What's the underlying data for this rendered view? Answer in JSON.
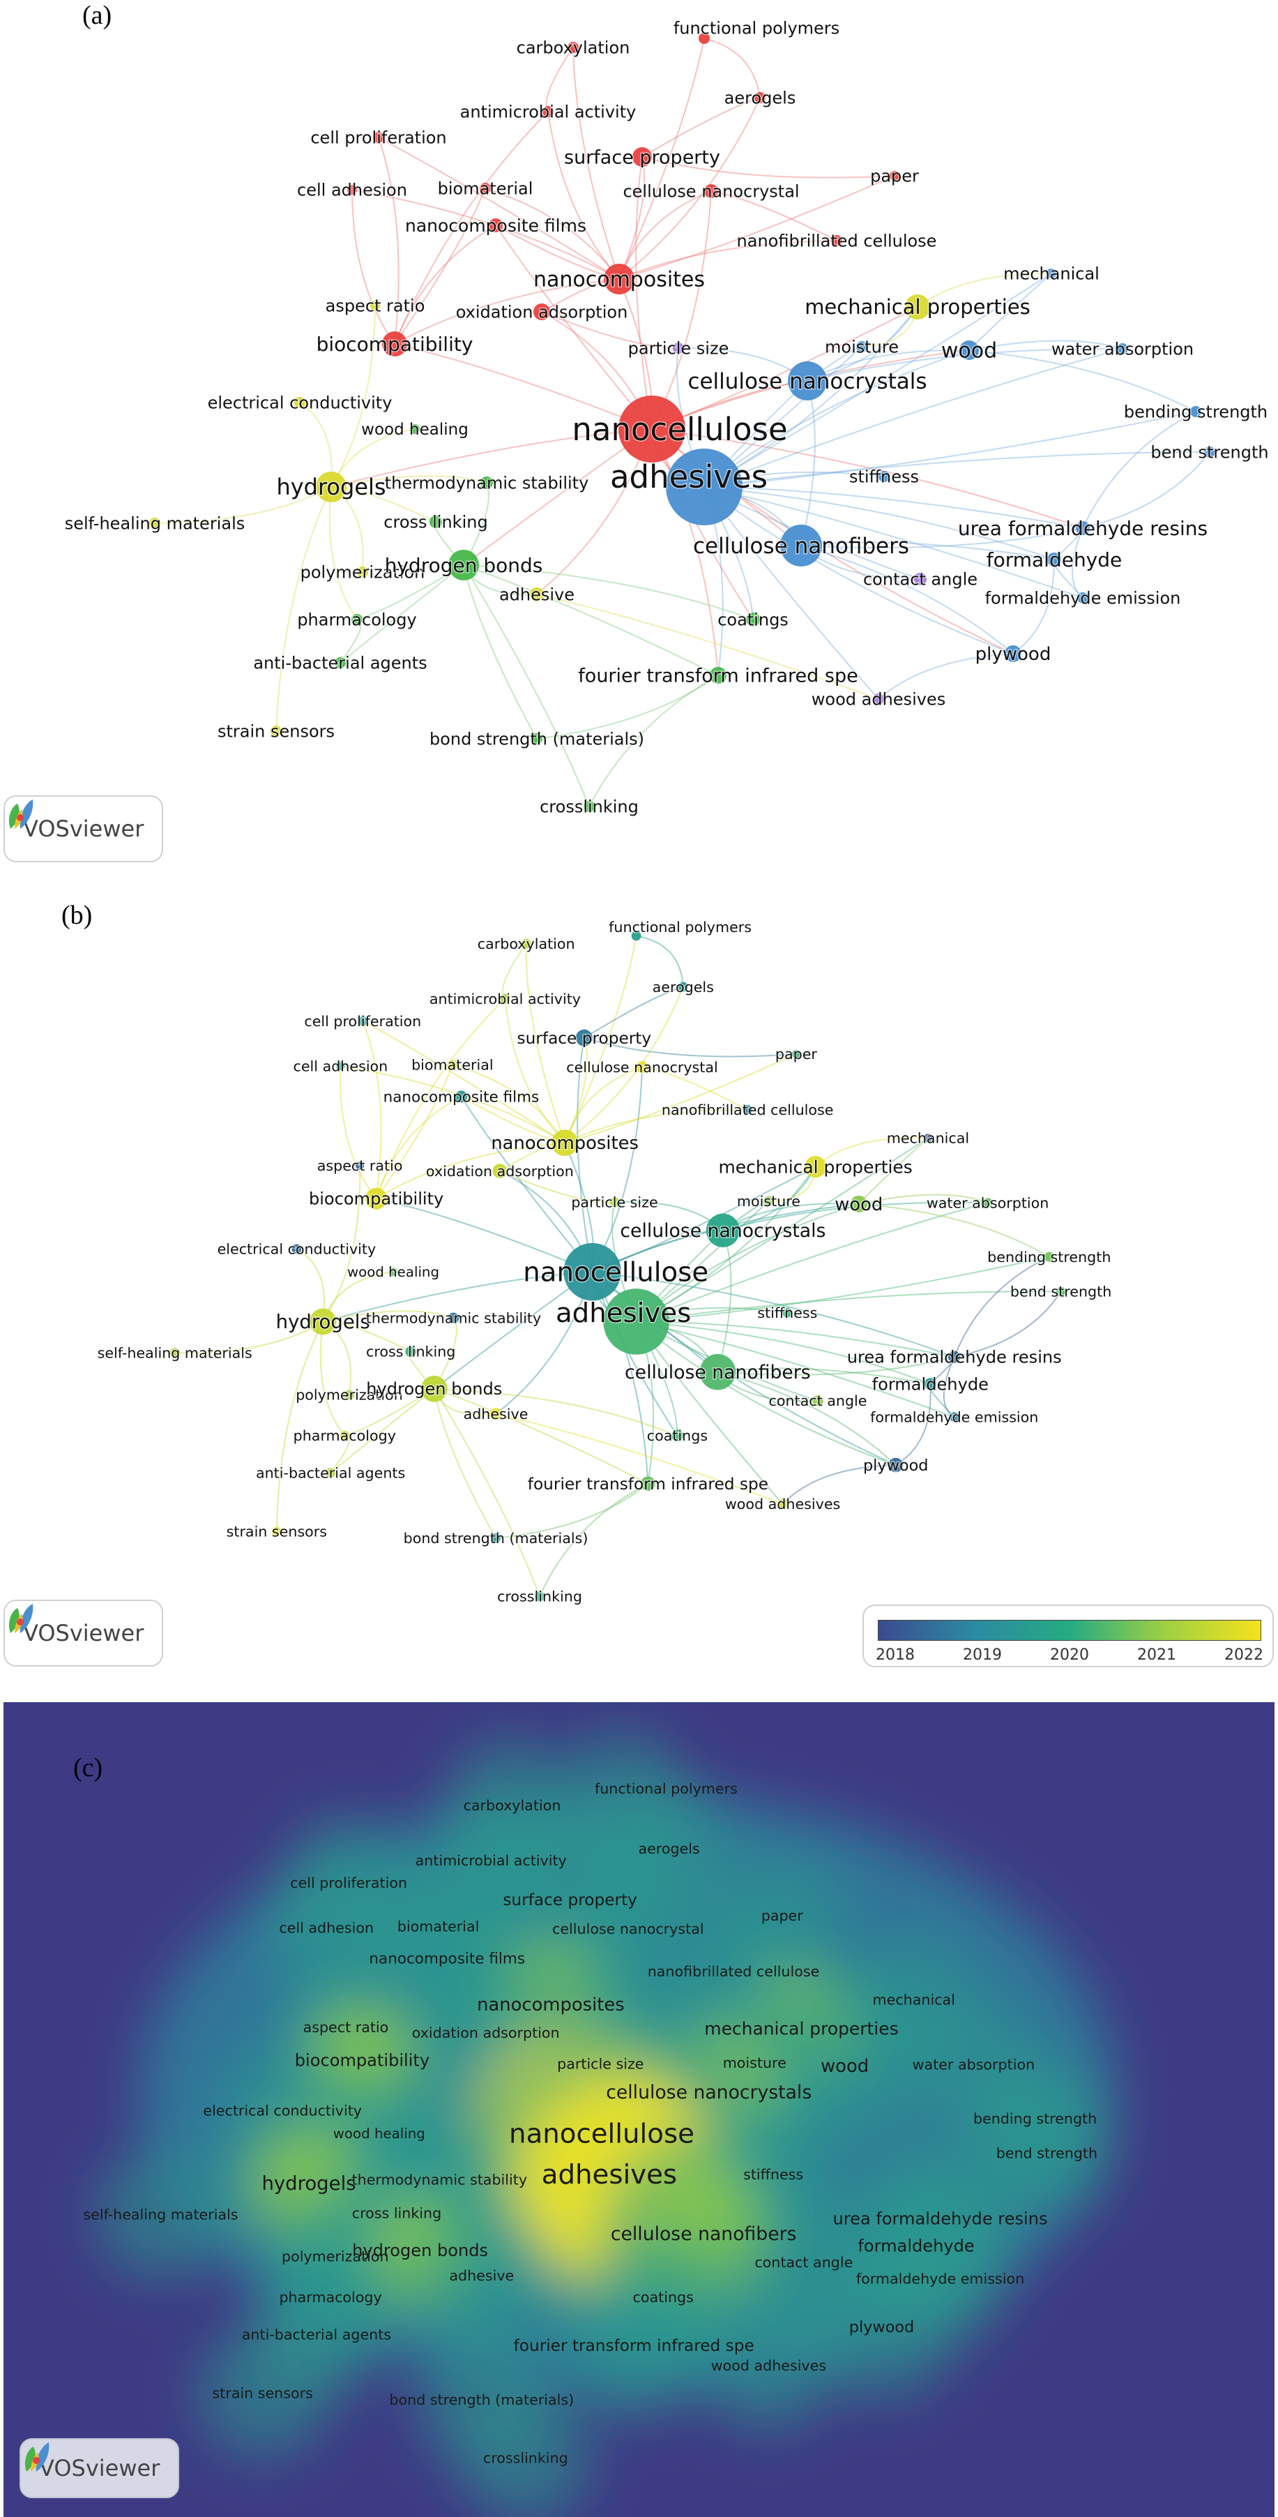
{
  "panels": {
    "a": {
      "letter": "(a)"
    },
    "b": {
      "letter": "(b)"
    },
    "c": {
      "letter": "(c)"
    }
  },
  "logo_text": "VOSviewer",
  "colorbar": {
    "ticks": [
      "2018",
      "2019",
      "2020",
      "2021",
      "2022"
    ],
    "range": [
      2017.8,
      2022.2
    ]
  },
  "colors": {
    "red": "#e8423f",
    "blue": "#4a8fd1",
    "green": "#47b84a",
    "yellow": "#d9d92e",
    "purple": "#a379e0",
    "density_bg": "#3e3b84"
  },
  "terms": [
    {
      "label": "functional polymers",
      "cluster": "red",
      "year": 2019.7
    },
    {
      "label": "carboxylation",
      "cluster": "red",
      "year": 2021.5
    },
    {
      "label": "aerogels",
      "cluster": "red",
      "year": 2019.3
    },
    {
      "label": "antimicrobial activity",
      "cluster": "red",
      "year": 2021.2
    },
    {
      "label": "cell proliferation",
      "cluster": "red",
      "year": 2019.5
    },
    {
      "label": "biomaterial",
      "cluster": "red",
      "year": 2021.8
    },
    {
      "label": "surface property",
      "cluster": "red",
      "year": 2018.6
    },
    {
      "label": "paper",
      "cluster": "red",
      "year": 2020.2
    },
    {
      "label": "cell adhesion",
      "cluster": "red",
      "year": 2019.6
    },
    {
      "label": "cellulose nanocrystal",
      "cluster": "red",
      "year": 2022.0
    },
    {
      "label": "nanocomposite films",
      "cluster": "red",
      "year": 2019.4
    },
    {
      "label": "nanofibrillated cellulose",
      "cluster": "red",
      "year": 2018.9
    },
    {
      "label": "nanocomposites",
      "cluster": "red",
      "year": 2021.8
    },
    {
      "label": "mechanical",
      "cluster": "blue",
      "year": 2018.2
    },
    {
      "label": "oxidation adsorption",
      "cluster": "red",
      "year": 2021.6
    },
    {
      "label": "aspect ratio",
      "cluster": "yellow",
      "year": 2018.4
    },
    {
      "label": "mechanical properties",
      "cluster": "yellow",
      "year": 2021.9
    },
    {
      "label": "biocompatibility",
      "cluster": "red",
      "year": 2021.9
    },
    {
      "label": "particle size",
      "cluster": "purple",
      "year": 2021.3
    },
    {
      "label": "moisture",
      "cluster": "blue",
      "year": 2021.0
    },
    {
      "label": "wood",
      "cluster": "blue",
      "year": 2020.9
    },
    {
      "label": "water absorption",
      "cluster": "blue",
      "year": 2020.5
    },
    {
      "label": "cellulose nanocrystals",
      "cluster": "blue",
      "year": 2019.8
    },
    {
      "label": "electrical conductivity",
      "cluster": "yellow",
      "year": 2018.3
    },
    {
      "label": "nanocellulose",
      "cluster": "red",
      "year": 2019.2
    },
    {
      "label": "wood healing",
      "cluster": "green",
      "year": 2020.6
    },
    {
      "label": "bending strength",
      "cluster": "blue",
      "year": 2020.7
    },
    {
      "label": "bend strength",
      "cluster": "blue",
      "year": 2020.4
    },
    {
      "label": "hydrogels",
      "cluster": "yellow",
      "year": 2021.6
    },
    {
      "label": "thermodynamic stability",
      "cluster": "green",
      "year": 2018.5
    },
    {
      "label": "adhesives",
      "cluster": "blue",
      "year": 2020.3
    },
    {
      "label": "stiffness",
      "cluster": "blue",
      "year": 2020.2
    },
    {
      "label": "self-healing materials",
      "cluster": "yellow",
      "year": 2021.4
    },
    {
      "label": "cross linking",
      "cluster": "green",
      "year": 2020.2
    },
    {
      "label": "urea formaldehyde resins",
      "cluster": "blue",
      "year": 2018.2
    },
    {
      "label": "cellulose nanofibers",
      "cluster": "blue",
      "year": 2020.4
    },
    {
      "label": "formaldehyde",
      "cluster": "blue",
      "year": 2019.2
    },
    {
      "label": "polymerization",
      "cluster": "yellow",
      "year": 2021.1
    },
    {
      "label": "hydrogen bonds",
      "cluster": "green",
      "year": 2021.5
    },
    {
      "label": "contact angle",
      "cluster": "purple",
      "year": 2021.0
    },
    {
      "label": "adhesive",
      "cluster": "yellow",
      "year": 2022.0
    },
    {
      "label": "formaldehyde emission",
      "cluster": "blue",
      "year": 2018.8
    },
    {
      "label": "pharmacology",
      "cluster": "green",
      "year": 2021.7
    },
    {
      "label": "coatings",
      "cluster": "green",
      "year": 2020.3
    },
    {
      "label": "anti-bacterial agents",
      "cluster": "green",
      "year": 2021.5
    },
    {
      "label": "plywood",
      "cluster": "blue",
      "year": 2018.3
    },
    {
      "label": "fourier transform infrared spe",
      "cluster": "green",
      "year": 2020.6
    },
    {
      "label": "wood adhesives",
      "cluster": "purple",
      "year": 2021.8
    },
    {
      "label": "strain sensors",
      "cluster": "yellow",
      "year": 2021.9
    },
    {
      "label": "bond strength (materials)",
      "cluster": "green",
      "year": 2019.6
    },
    {
      "label": "crosslinking",
      "cluster": "green",
      "year": 2020.1
    }
  ]
}
